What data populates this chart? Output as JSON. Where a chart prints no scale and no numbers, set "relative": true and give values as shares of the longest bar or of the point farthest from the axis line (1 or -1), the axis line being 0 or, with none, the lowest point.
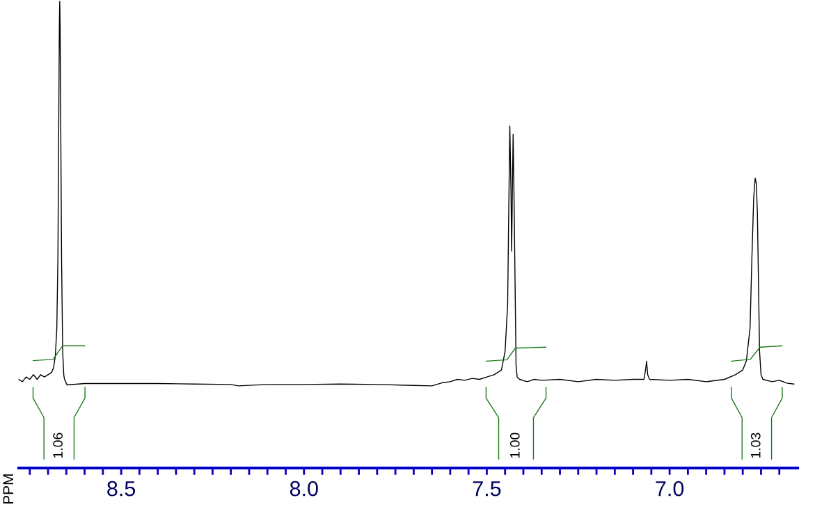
{
  "chart_data": {
    "type": "line",
    "relative": true,
    "ylabel": "PPM",
    "grid": false,
    "legend": false,
    "xlim": [
      8.78,
      6.65
    ],
    "xticks": [
      {
        "value": 8.75,
        "label": null
      },
      {
        "value": 8.7,
        "label": null
      },
      {
        "value": 8.65,
        "label": null
      },
      {
        "value": 8.6,
        "label": null
      },
      {
        "value": 8.55,
        "label": null
      },
      8.5,
      {
        "value": 8.45,
        "label": null
      },
      {
        "value": 8.4,
        "label": null
      },
      {
        "value": 8.35,
        "label": null
      },
      {
        "value": 8.3,
        "label": null
      },
      {
        "value": 8.25,
        "label": null
      },
      {
        "value": 8.2,
        "label": null
      },
      {
        "value": 8.15,
        "label": null
      },
      {
        "value": 8.1,
        "label": null
      },
      {
        "value": 8.05,
        "label": null
      },
      {
        "value": 8,
        "label": "8.0"
      },
      {
        "value": 7.95,
        "label": null
      },
      {
        "value": 7.9,
        "label": null
      },
      {
        "value": 7.85,
        "label": null
      },
      {
        "value": 7.8,
        "label": null
      },
      {
        "value": 7.75,
        "label": null
      },
      {
        "value": 7.7,
        "label": null
      },
      {
        "value": 7.65,
        "label": null
      },
      {
        "value": 7.6,
        "label": null
      },
      {
        "value": 7.55,
        "label": null
      },
      7.5,
      {
        "value": 7.45,
        "label": null
      },
      {
        "value": 7.4,
        "label": null
      },
      {
        "value": 7.35,
        "label": null
      },
      {
        "value": 7.3,
        "label": null
      },
      {
        "value": 7.25,
        "label": null
      },
      {
        "value": 7.2,
        "label": null
      },
      {
        "value": 7.15,
        "label": null
      },
      {
        "value": 7.1,
        "label": null
      },
      {
        "value": 7.05,
        "label": null
      },
      {
        "value": 7,
        "label": "7.0"
      },
      {
        "value": 6.95,
        "label": null
      },
      {
        "value": 6.9,
        "label": null
      },
      {
        "value": 6.85,
        "label": null
      },
      {
        "value": 6.8,
        "label": null
      },
      {
        "value": 6.75,
        "label": null
      },
      {
        "value": 6.7,
        "label": null
      }
    ],
    "series": [
      {
        "color": "#000000",
        "x": [
          8.78,
          8.77,
          8.76,
          8.75,
          8.74,
          8.73,
          8.72,
          8.71,
          8.7,
          8.69,
          8.685,
          8.68,
          8.676,
          8.673,
          8.671,
          8.669,
          8.668,
          8.667,
          8.665,
          8.663,
          8.66,
          8.657,
          8.655,
          8.652,
          8.648,
          8.6,
          8.5,
          8.4,
          8.3,
          8.2,
          8.18,
          8.1,
          8.0,
          7.9,
          7.8,
          7.7,
          7.65,
          7.62,
          7.6,
          7.58,
          7.56,
          7.54,
          7.52,
          7.5,
          7.48,
          7.46,
          7.45,
          7.443,
          7.44,
          7.437,
          7.434,
          7.432,
          7.43,
          7.428,
          7.425,
          7.422,
          7.42,
          7.417,
          7.41,
          7.39,
          7.37,
          7.35,
          7.3,
          7.25,
          7.2,
          7.15,
          7.1,
          7.07,
          7.065,
          7.063,
          7.06,
          7.055,
          7.0,
          6.95,
          6.9,
          6.85,
          6.82,
          6.8,
          6.79,
          6.78,
          6.775,
          6.77,
          6.766,
          6.763,
          6.76,
          6.757,
          6.754,
          6.75,
          6.745,
          6.72,
          6.7,
          6.68,
          6.66
        ],
        "values": [
          0.19,
          0.185,
          0.195,
          0.19,
          0.2,
          0.19,
          0.2,
          0.195,
          0.2,
          0.205,
          0.215,
          0.24,
          0.3,
          0.45,
          0.7,
          0.95,
          1.0,
          0.95,
          0.7,
          0.45,
          0.25,
          0.2,
          0.19,
          0.185,
          0.178,
          0.181,
          0.181,
          0.181,
          0.18,
          0.179,
          0.176,
          0.179,
          0.179,
          0.18,
          0.179,
          0.177,
          0.176,
          0.183,
          0.185,
          0.19,
          0.188,
          0.192,
          0.19,
          0.195,
          0.2,
          0.21,
          0.25,
          0.35,
          0.55,
          0.733,
          0.6,
          0.465,
          0.6,
          0.715,
          0.55,
          0.35,
          0.22,
          0.195,
          0.19,
          0.185,
          0.19,
          0.188,
          0.19,
          0.185,
          0.19,
          0.188,
          0.19,
          0.19,
          0.215,
          0.229,
          0.2,
          0.19,
          0.188,
          0.19,
          0.185,
          0.19,
          0.2,
          0.21,
          0.23,
          0.3,
          0.45,
          0.58,
          0.621,
          0.61,
          0.55,
          0.4,
          0.25,
          0.2,
          0.19,
          0.185,
          0.188,
          0.182,
          0.18
        ]
      },
      {
        "color": "#1a7a1a",
        "x": [
          8.741,
          8.686,
          8.66,
          8.599
        ],
        "values": [
          0.23,
          0.233,
          0.262,
          0.262
        ]
      },
      {
        "color": "#1a7a1a",
        "x": [
          7.502,
          7.445,
          7.422,
          7.338
        ],
        "values": [
          0.229,
          0.232,
          0.257,
          0.259
        ]
      },
      {
        "color": "#1a7a1a",
        "x": [
          6.831,
          6.779,
          6.753,
          6.692
        ],
        "values": [
          0.229,
          0.233,
          0.259,
          0.262
        ]
      }
    ],
    "annotations": [
      "1.06",
      "1.00",
      "1.03"
    ]
  }
}
